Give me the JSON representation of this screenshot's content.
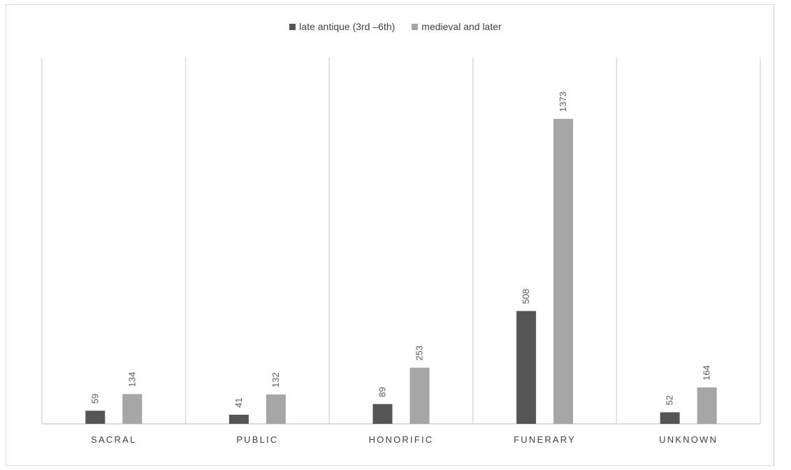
{
  "chart_data": {
    "type": "bar",
    "categories": [
      "SACRAL",
      "PUBLIC",
      "HONORIFIC",
      "FUNERARY",
      "UNKNOWN"
    ],
    "series": [
      {
        "name": "late antique (3rd –6th)",
        "values": [
          59,
          41,
          89,
          508,
          52
        ],
        "color": "#555555"
      },
      {
        "name": "medieval and later",
        "values": [
          134,
          132,
          253,
          1373,
          164
        ],
        "color": "#a6a6a6"
      }
    ],
    "ylim": [
      0,
      1650
    ],
    "grid": false,
    "legend": "top-center",
    "data_labels": true,
    "title": "",
    "xlabel": "",
    "ylabel": ""
  }
}
